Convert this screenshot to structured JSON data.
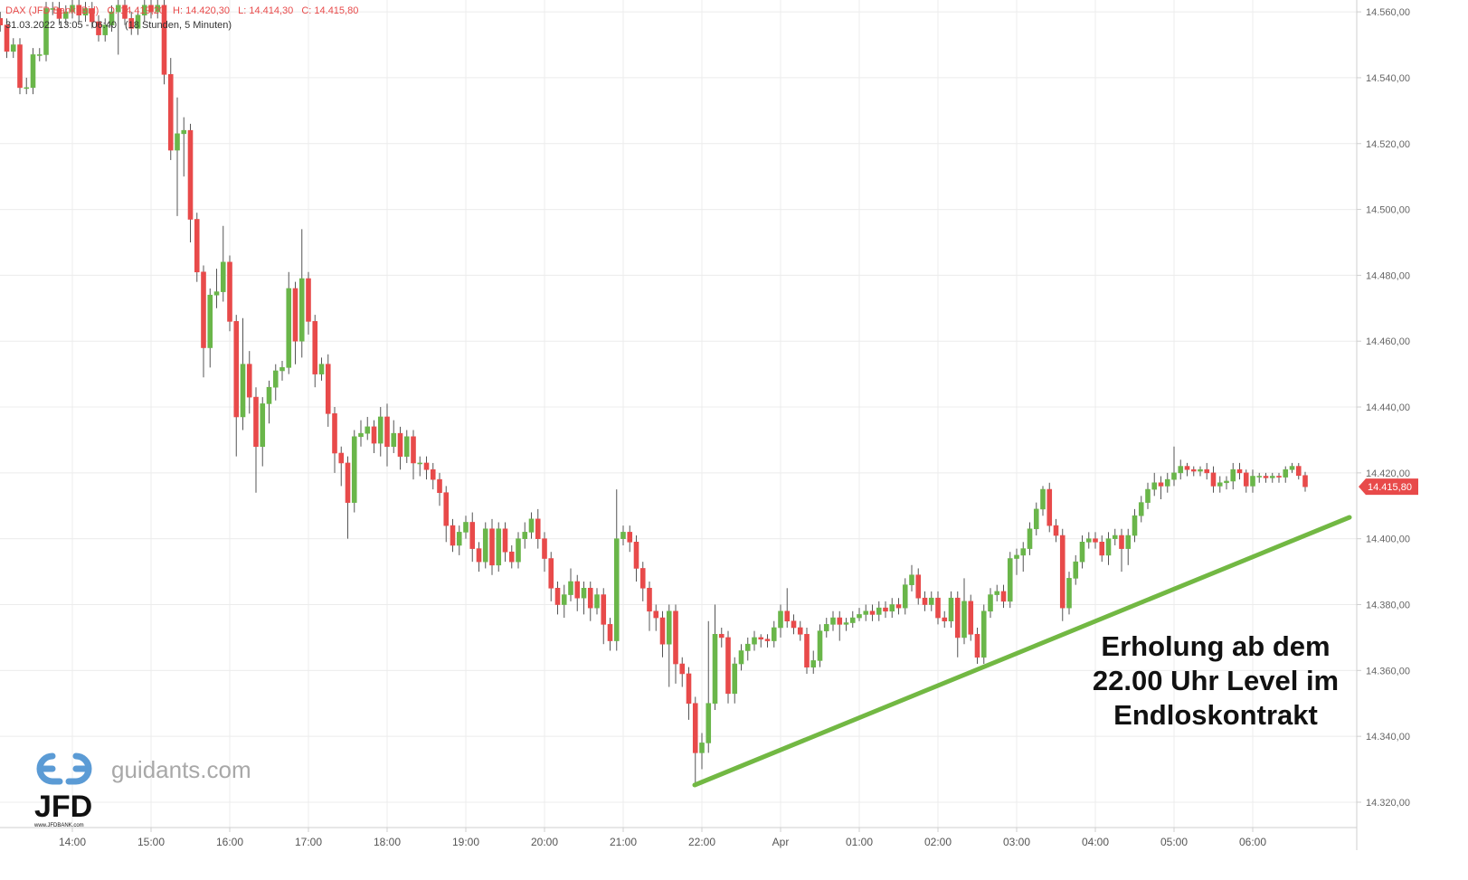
{
  "chart_data": {
    "type": "candlestick",
    "header": {
      "symbol": "DAX (JFD Bank, Bid)",
      "open_text": "O: 14.419,20",
      "high_text": "H: 14.420,30",
      "low_text": "L: 14.414,30",
      "close_text": "C: 14.415,80",
      "range": "31.03.2022 13:05 - 06:40",
      "span": "(18 Stunden, 5 Minuten)"
    },
    "annotation": [
      "Erholung ab dem",
      "22.00 Uhr Level im",
      "Endloskontrakt"
    ],
    "logo": {
      "site": "guidants.com",
      "brand": "JFD",
      "url": "www.JFDBANK.com"
    },
    "last_price_label": "14.415,80",
    "up_color": "#6ab64a",
    "down_color": "#e84a4a",
    "grid": true,
    "ylim": [
      14312.3,
      14563.6
    ],
    "yticks": [
      {
        "value": 14320,
        "label": "14.320,00"
      },
      {
        "value": 14340,
        "label": "14.340,00"
      },
      {
        "value": 14360,
        "label": "14.360,00"
      },
      {
        "value": 14380,
        "label": "14.380,00"
      },
      {
        "value": 14400,
        "label": "14.400,00"
      },
      {
        "value": 14420,
        "label": "14.420,00"
      },
      {
        "value": 14440,
        "label": "14.440,00"
      },
      {
        "value": 14460,
        "label": "14.460,00"
      },
      {
        "value": 14480,
        "label": "14.480,00"
      },
      {
        "value": 14500,
        "label": "14.500,00"
      },
      {
        "value": 14520,
        "label": "14.520,00"
      },
      {
        "value": 14540,
        "label": "14.540,00"
      },
      {
        "value": 14560,
        "label": "14.560,00"
      }
    ],
    "categories": [
      null,
      null,
      null,
      null,
      null,
      null,
      null,
      null,
      null,
      null,
      null,
      "14:00",
      null,
      null,
      null,
      null,
      null,
      null,
      null,
      null,
      null,
      null,
      null,
      "15:00",
      null,
      null,
      null,
      null,
      null,
      null,
      null,
      null,
      null,
      null,
      null,
      "16:00",
      null,
      null,
      null,
      null,
      null,
      null,
      null,
      null,
      null,
      null,
      null,
      "17:00",
      null,
      null,
      null,
      null,
      null,
      null,
      null,
      null,
      null,
      null,
      null,
      "18:00",
      null,
      null,
      null,
      null,
      null,
      null,
      null,
      null,
      null,
      null,
      null,
      "19:00",
      null,
      null,
      null,
      null,
      null,
      null,
      null,
      null,
      null,
      null,
      null,
      "20:00",
      null,
      null,
      null,
      null,
      null,
      null,
      null,
      null,
      null,
      null,
      null,
      "21:00",
      null,
      null,
      null,
      null,
      null,
      null,
      null,
      null,
      null,
      null,
      null,
      "22:00",
      null,
      null,
      null,
      null,
      null,
      null,
      null,
      null,
      null,
      null,
      null,
      "Apr",
      null,
      null,
      null,
      null,
      null,
      null,
      null,
      null,
      null,
      null,
      null,
      "01:00",
      null,
      null,
      null,
      null,
      null,
      null,
      null,
      null,
      null,
      null,
      null,
      "02:00",
      null,
      null,
      null,
      null,
      null,
      null,
      null,
      null,
      null,
      null,
      null,
      "03:00",
      null,
      null,
      null,
      null,
      null,
      null,
      null,
      null,
      null,
      null,
      null,
      "04:00",
      null,
      null,
      null,
      null,
      null,
      null,
      null,
      null,
      null,
      null,
      null,
      "05:00",
      null,
      null,
      null,
      null,
      null,
      null,
      null,
      null,
      null,
      null,
      null,
      "06:00",
      null,
      null,
      null,
      null,
      null,
      null,
      null,
      null
    ],
    "open": [
      14558,
      14556,
      14548,
      14550,
      14537,
      14537,
      14547,
      14547,
      14561,
      14561,
      14558,
      14560,
      14562,
      14559,
      14561,
      14557,
      14553,
      14556,
      14560,
      14562,
      14558,
      14555,
      14559,
      14562,
      14560,
      14562,
      14541,
      14518,
      14523,
      14524,
      14497,
      14481,
      14458,
      14474,
      14475,
      14484,
      14466,
      14437,
      14453,
      14443,
      14428,
      14441,
      14446,
      14451,
      14452,
      14476,
      14460,
      14479,
      14466,
      14450,
      14453,
      14438,
      14426,
      14423,
      14411,
      14431,
      14432,
      14434,
      14429,
      14437,
      14428,
      14432,
      14425,
      14431,
      14423,
      14423,
      14421,
      14418,
      14414,
      14404,
      14398,
      14402,
      14405,
      14397,
      14393,
      14403,
      14392,
      14403,
      14396,
      14393,
      14400,
      14402,
      14406,
      14400,
      14394,
      14385,
      14380,
      14383,
      14387,
      14382,
      14385,
      14379,
      14383,
      14374,
      14369,
      14400,
      14402,
      14399,
      14391,
      14385,
      14378,
      14376,
      14368,
      14378,
      14362,
      14359,
      14350,
      14335,
      14338,
      14350,
      14371,
      14370,
      14353,
      14362,
      14366,
      14368,
      14370,
      14369.5,
      14369,
      14373,
      14378,
      14375,
      14373,
      14371,
      14361,
      14363,
      14372,
      14374,
      14376,
      14374,
      14374.5,
      14376,
      14377,
      14378,
      14377,
      14379,
      14378,
      14380,
      14379,
      14386,
      14389,
      14382,
      14380,
      14382,
      14376,
      14375,
      14382,
      14370,
      14381,
      14371,
      14364,
      14378,
      14383,
      14384,
      14381,
      14394,
      14395,
      14397,
      14403,
      14409,
      14415,
      14404,
      14401,
      14379,
      14388,
      14393,
      14399,
      14400,
      14399,
      14395,
      14400,
      14401,
      14397,
      14401,
      14407,
      14411,
      14415,
      14417,
      14416,
      14418,
      14420,
      14422,
      14421,
      14420.5,
      14421,
      14420,
      14416,
      14417,
      14417.5,
      14421,
      14420,
      14416,
      14419,
      14419,
      14418.5,
      14419,
      14418.7,
      14421,
      14422,
      14419.2
    ],
    "high": [
      14560,
      14558,
      14552,
      14552,
      14540,
      14549,
      14549,
      14563,
      14563,
      14563,
      14562,
      14564,
      14564,
      14563,
      14563,
      14559,
      14558,
      14562,
      14564,
      14564,
      14560,
      14561,
      14564,
      14564,
      14564,
      14564,
      14546,
      14534,
      14528,
      14526,
      14499,
      14483,
      14476,
      14482,
      14495,
      14486,
      14468,
      14467,
      14457,
      14446,
      14443,
      14448,
      14453,
      14454,
      14481,
      14478,
      14494,
      14481,
      14468,
      14455,
      14456,
      14440,
      14428,
      14425,
      14433,
      14436,
      14437,
      14436,
      14440,
      14441,
      14436,
      14434,
      14433,
      14433,
      14425,
      14425,
      14423,
      14420,
      14416,
      14406,
      14404,
      14407,
      14408,
      14399,
      14405,
      14406,
      14405,
      14405,
      14398,
      14402,
      14405,
      14408,
      14409,
      14402,
      14396,
      14387,
      14386,
      14391,
      14389,
      14387,
      14387,
      14385,
      14385,
      14376,
      14415,
      14404,
      14404,
      14401,
      14393,
      14387,
      14380,
      14378,
      14380,
      14380,
      14364,
      14361,
      14352,
      14341,
      14375,
      14380,
      14373,
      14372,
      14364,
      14368,
      14370,
      14372,
      14371,
      14371,
      14375,
      14380,
      14385,
      14377,
      14375,
      14373,
      14366,
      14374,
      14376,
      14378,
      14378,
      14376,
      14378,
      14379,
      14380,
      14380,
      14381,
      14381,
      14382,
      14382,
      14388,
      14392,
      14391,
      14384,
      14384,
      14384,
      14378,
      14384,
      14384,
      14388,
      14383,
      14373,
      14380,
      14385,
      14386,
      14386,
      14396,
      14397,
      14399,
      14405,
      14411,
      14416,
      14417,
      14406,
      14403,
      14390,
      14395,
      14401,
      14402,
      14402,
      14401,
      14402,
      14403,
      14403,
      14403,
      14409,
      14413,
      14417,
      14420,
      14419,
      14420,
      14428,
      14424,
      14423,
      14422,
      14422,
      14423,
      14422,
      14419,
      14419,
      14423,
      14423,
      14421,
      14421,
      14420,
      14420,
      14420,
      14420,
      14422,
      14423,
      14423,
      14420.3
    ],
    "low": [
      14554,
      14546,
      14546,
      14535,
      14535,
      14535,
      14545,
      14545,
      14559,
      14556,
      14556,
      14558,
      14557,
      14557,
      14555,
      14551,
      14551,
      14554,
      14547,
      14556,
      14553,
      14553,
      14557,
      14558,
      14558,
      14538,
      14515,
      14498,
      14510,
      14490,
      14478,
      14449,
      14452,
      14470,
      14472,
      14463,
      14425,
      14433,
      14438,
      14414,
      14422,
      14435,
      14442,
      14448,
      14450,
      14453,
      14455,
      14462,
      14446,
      14448,
      14434,
      14420,
      14416,
      14400,
      14408,
      14428,
      14430,
      14426,
      14425,
      14422,
      14426,
      14421,
      14423,
      14418,
      14419,
      14418,
      14415,
      14410,
      14399,
      14396,
      14395,
      14400,
      14393,
      14390,
      14391,
      14389,
      14390,
      14393,
      14391,
      14391,
      14397,
      14400,
      14397,
      14390,
      14381,
      14377,
      14376,
      14381,
      14378,
      14377,
      14375,
      14377,
      14368,
      14366,
      14366,
      14398,
      14396,
      14387,
      14381,
      14372,
      14372,
      14364,
      14355,
      14356,
      14355,
      14345,
      14326,
      14330,
      14335,
      14348,
      14367,
      14350,
      14350,
      14360,
      14363,
      14366,
      14367,
      14367,
      14367,
      14370,
      14373,
      14371,
      14369,
      14359,
      14359,
      14361,
      14370,
      14372,
      14369,
      14372,
      14373,
      14375,
      14375,
      14375,
      14375,
      14376,
      14376,
      14377,
      14377,
      14384,
      14380,
      14378,
      14378,
      14374,
      14373,
      14373,
      14364,
      14368,
      14369,
      14362,
      14362,
      14376,
      14381,
      14379,
      14379,
      14389,
      14390,
      14395,
      14401,
      14407,
      14402,
      14399,
      14375,
      14377,
      14386,
      14391,
      14397,
      14397,
      14393,
      14392,
      14398,
      14390,
      14392,
      14399,
      14405,
      14409,
      14413,
      14412,
      14414,
      14416,
      14418,
      14419,
      14419,
      14419,
      14418,
      14414,
      14414,
      14415,
      14415,
      14418,
      14414,
      14414,
      14417,
      14417,
      14417,
      14417,
      14417,
      14420,
      14418,
      14414.3
    ],
    "close": [
      14556,
      14548,
      14550,
      14537,
      14537,
      14547,
      14547,
      14561,
      14561,
      14558,
      14560,
      14562,
      14559,
      14561,
      14557,
      14553,
      14556,
      14560,
      14562,
      14558,
      14555,
      14559,
      14562,
      14560,
      14562,
      14541,
      14518,
      14523,
      14524,
      14497,
      14481,
      14458,
      14474,
      14475,
      14484,
      14466,
      14437,
      14453,
      14443,
      14428,
      14441,
      14446,
      14451,
      14452,
      14476,
      14460,
      14479,
      14466,
      14450,
      14453,
      14438,
      14426,
      14423,
      14411,
      14431,
      14432,
      14434,
      14429,
      14437,
      14428,
      14432,
      14425,
      14431,
      14423,
      14423,
      14421,
      14418,
      14414,
      14404,
      14398,
      14402,
      14405,
      14397,
      14393,
      14403,
      14392,
      14403,
      14396,
      14393,
      14400,
      14402,
      14406,
      14400,
      14394,
      14385,
      14380,
      14383,
      14387,
      14382,
      14385,
      14379,
      14383,
      14374,
      14369,
      14400,
      14402,
      14399,
      14391,
      14385,
      14378,
      14376,
      14368,
      14378,
      14362,
      14359,
      14350,
      14335,
      14338,
      14350,
      14371,
      14370,
      14353,
      14362,
      14366,
      14368,
      14370,
      14369.5,
      14369,
      14373,
      14378,
      14375,
      14373,
      14371,
      14361,
      14363,
      14372,
      14374,
      14376,
      14374,
      14374.5,
      14376,
      14377,
      14378,
      14377,
      14379,
      14378,
      14380,
      14379,
      14386,
      14389,
      14382,
      14380,
      14382,
      14376,
      14375,
      14382,
      14370,
      14381,
      14371,
      14364,
      14378,
      14383,
      14384,
      14381,
      14394,
      14395,
      14397,
      14403,
      14409,
      14415,
      14404,
      14401,
      14379,
      14388,
      14393,
      14399,
      14400,
      14399,
      14395,
      14400,
      14401,
      14397,
      14401,
      14407,
      14411,
      14415,
      14417,
      14416,
      14418,
      14420,
      14422,
      14421,
      14420.5,
      14421,
      14420,
      14416,
      14417,
      14417.5,
      14421,
      14420,
      14416,
      14419,
      14419,
      14418.5,
      14419,
      14418.7,
      14421,
      14422,
      14419.2,
      14415.8
    ]
  }
}
